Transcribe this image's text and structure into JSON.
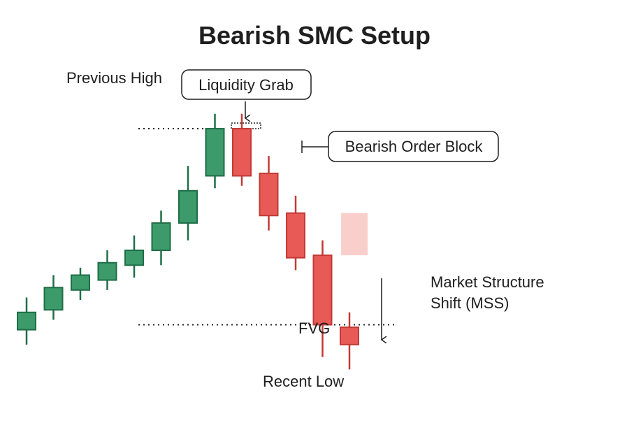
{
  "title": "Bearish SMC Setup",
  "labels": {
    "previous_high": "Previous High",
    "liquidity_grab": "Liquidity Grab",
    "bearish_order_block": "Bearish Order Block",
    "mss_line1": "Market Structure",
    "mss_line2": "Shift (MSS)",
    "fvg": "FVG",
    "recent_low": "Recent Low"
  },
  "colors": {
    "bullish_fill": "#3d9a6b",
    "bullish_stroke": "#1f6e47",
    "bearish_fill": "#e85a56",
    "bearish_stroke": "#c23a36",
    "fvg_zone": "#f9cfcc",
    "text": "#1f1f1f"
  },
  "chart_data": {
    "type": "candlestick",
    "price_range": [
      0,
      100
    ],
    "candles": [
      {
        "direction": "bullish",
        "open": 8,
        "close": 15,
        "high": 21,
        "low": 2
      },
      {
        "direction": "bullish",
        "open": 16,
        "close": 25,
        "high": 30,
        "low": 12
      },
      {
        "direction": "bullish",
        "open": 24,
        "close": 30,
        "high": 33,
        "low": 20
      },
      {
        "direction": "bullish",
        "open": 28,
        "close": 35,
        "high": 40,
        "low": 24
      },
      {
        "direction": "bullish",
        "open": 34,
        "close": 40,
        "high": 46,
        "low": 29
      },
      {
        "direction": "bullish",
        "open": 40,
        "close": 51,
        "high": 56,
        "low": 34
      },
      {
        "direction": "bullish",
        "open": 51,
        "close": 64,
        "high": 74,
        "low": 44
      },
      {
        "direction": "bullish",
        "open": 70,
        "close": 89,
        "high": 95,
        "low": 65
      },
      {
        "direction": "bearish",
        "open": 89,
        "close": 70,
        "high": 95,
        "low": 66
      },
      {
        "direction": "bearish",
        "open": 71,
        "close": 54,
        "high": 78,
        "low": 48
      },
      {
        "direction": "bearish",
        "open": 55,
        "close": 37,
        "high": 62,
        "low": 32
      },
      {
        "direction": "bearish",
        "open": 38,
        "close": 10,
        "high": 44,
        "low": -3
      },
      {
        "direction": "bearish",
        "open": 9,
        "close": 2,
        "high": 15,
        "low": -8
      }
    ],
    "previous_high_level": 89,
    "recent_low_level": 10,
    "fvg_zone": {
      "from": 38,
      "to": 55
    }
  }
}
